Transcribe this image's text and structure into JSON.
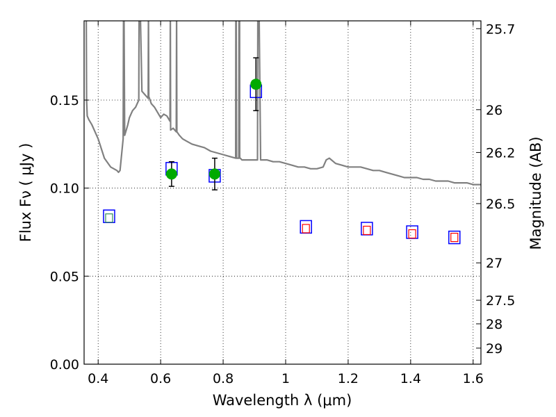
{
  "chart_data": {
    "type": "scatter",
    "xlabel": "Wavelength  λ (μm)",
    "ylabel": "Flux  Fν  ( μJy )",
    "y2label": "Magnitude (AB)",
    "xlim": [
      0.355,
      1.625
    ],
    "ylim": [
      0.0,
      0.195
    ],
    "grid": true,
    "x_ticks": [
      0.4,
      0.6,
      0.8,
      1.0,
      1.2,
      1.4,
      1.6
    ],
    "x_tick_labels": [
      "0.4",
      "0.6",
      "0.8",
      "1",
      "1.2",
      "1.4",
      "1.6"
    ],
    "y_ticks": [
      0.0,
      0.05,
      0.1,
      0.15
    ],
    "y_tick_labels": [
      "0.00",
      "0.05",
      "0.10",
      "0.15"
    ],
    "mag_ticks": [
      {
        "label": "25.7",
        "mag": 25.7
      },
      {
        "label": "26",
        "mag": 26.0
      },
      {
        "label": "26.2",
        "mag": 26.2
      },
      {
        "label": "26.5",
        "mag": 26.5
      },
      {
        "label": "27",
        "mag": 27.0
      },
      {
        "label": "27.5",
        "mag": 27.5
      },
      {
        "label": "28",
        "mag": 28.0
      },
      {
        "label": "29",
        "mag": 29.0
      }
    ],
    "colors": {
      "spectrum": "#808080",
      "observed": "#00aa00",
      "model_box": "#0000ff",
      "inner_box_red": "#ff0000",
      "inner_box_green": "#2e8b57",
      "errorbar": "#000000",
      "grid": "#000000"
    },
    "series": [
      {
        "kind": "line",
        "x": [
          0.36,
          0.362,
          0.363,
          0.365,
          0.37,
          0.38,
          0.4,
          0.42,
          0.44,
          0.46,
          0.465,
          0.47,
          0.48,
          0.481,
          0.482,
          0.483,
          0.485,
          0.49,
          0.495,
          0.5,
          0.505,
          0.51,
          0.52,
          0.53,
          0.531,
          0.532,
          0.535,
          0.54,
          0.55,
          0.56,
          0.561,
          0.562,
          0.57,
          0.58,
          0.59,
          0.6,
          0.61,
          0.62,
          0.63,
          0.631,
          0.632,
          0.64,
          0.65,
          0.651,
          0.652,
          0.66,
          0.67,
          0.68,
          0.69,
          0.7,
          0.72,
          0.74,
          0.76,
          0.78,
          0.8,
          0.82,
          0.84,
          0.841,
          0.843,
          0.85,
          0.851,
          0.852,
          0.853,
          0.855,
          0.86,
          0.88,
          0.9,
          0.91,
          0.911,
          0.912,
          0.915,
          0.92,
          0.94,
          0.96,
          0.98,
          1.0,
          1.02,
          1.04,
          1.06,
          1.08,
          1.1,
          1.12,
          1.13,
          1.14,
          1.16,
          1.18,
          1.2,
          1.22,
          1.24,
          1.26,
          1.28,
          1.3,
          1.32,
          1.34,
          1.36,
          1.38,
          1.4,
          1.42,
          1.44,
          1.46,
          1.48,
          1.5,
          1.52,
          1.54,
          1.56,
          1.58,
          1.6,
          1.625
        ],
        "y": [
          0.27,
          0.2,
          0.15,
          0.141,
          0.139,
          0.136,
          0.128,
          0.117,
          0.112,
          0.11,
          0.109,
          0.11,
          0.128,
          0.195,
          0.3,
          0.195,
          0.13,
          0.133,
          0.136,
          0.14,
          0.142,
          0.144,
          0.146,
          0.15,
          0.2,
          0.3,
          0.2,
          0.155,
          0.153,
          0.151,
          0.2,
          0.152,
          0.148,
          0.146,
          0.143,
          0.14,
          0.142,
          0.141,
          0.138,
          0.2,
          0.133,
          0.134,
          0.132,
          0.2,
          0.132,
          0.13,
          0.128,
          0.127,
          0.126,
          0.125,
          0.124,
          0.123,
          0.121,
          0.12,
          0.119,
          0.118,
          0.117,
          0.25,
          0.117,
          0.117,
          0.25,
          0.3,
          0.117,
          0.117,
          0.116,
          0.116,
          0.116,
          0.116,
          0.2,
          0.3,
          0.2,
          0.116,
          0.116,
          0.115,
          0.115,
          0.114,
          0.113,
          0.112,
          0.112,
          0.111,
          0.111,
          0.112,
          0.116,
          0.117,
          0.114,
          0.113,
          0.112,
          0.112,
          0.112,
          0.111,
          0.11,
          0.11,
          0.109,
          0.108,
          0.107,
          0.106,
          0.106,
          0.106,
          0.105,
          0.105,
          0.104,
          0.104,
          0.104,
          0.103,
          0.103,
          0.103,
          0.102,
          0.102
        ]
      },
      {
        "kind": "model-photometry",
        "x": [
          0.435,
          0.635,
          0.773,
          0.905,
          1.065,
          1.26,
          1.405,
          1.54
        ],
        "y": [
          0.084,
          0.111,
          0.107,
          0.155,
          0.078,
          0.077,
          0.075,
          0.072
        ],
        "inner": [
          0.083,
          0.0,
          0.0,
          0.0,
          0.077,
          0.076,
          0.074,
          0.072
        ],
        "inner_color": [
          "green",
          "none",
          "none",
          "none",
          "red",
          "red",
          "red",
          "red"
        ]
      },
      {
        "kind": "observed",
        "x": [
          0.635,
          0.773,
          0.905
        ],
        "y": [
          0.108,
          0.108,
          0.159
        ],
        "err": [
          0.007,
          0.009,
          0.015
        ]
      }
    ]
  }
}
